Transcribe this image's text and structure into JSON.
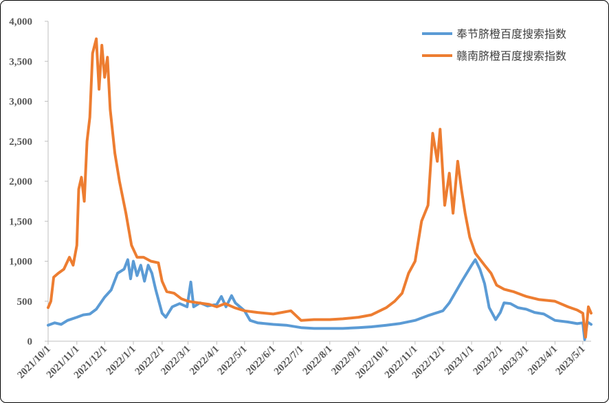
{
  "chart_data": {
    "type": "line",
    "title": "",
    "xlabel": "",
    "ylabel": "",
    "ylim": [
      0,
      4000
    ],
    "yticks": [
      0,
      500,
      1000,
      1500,
      2000,
      2500,
      3000,
      3500,
      4000
    ],
    "ytick_labels": [
      "0",
      "500",
      "1,000",
      "1,500",
      "2,000",
      "2,500",
      "3,000",
      "3,500",
      "4,000"
    ],
    "x_range": [
      "2021-10-01",
      "2023-05-10"
    ],
    "xticks": [
      "2021-10-01",
      "2021-11-01",
      "2021-12-01",
      "2022-01-01",
      "2022-02-01",
      "2022-03-01",
      "2022-04-01",
      "2022-05-01",
      "2022-06-01",
      "2022-07-01",
      "2022-08-01",
      "2022-09-01",
      "2022-10-01",
      "2022-11-01",
      "2022-12-01",
      "2023-01-01",
      "2023-02-01",
      "2023-03-01",
      "2023-04-01",
      "2023-05-01"
    ],
    "xtick_labels": [
      "2021/10/1",
      "2021/11/1",
      "2021/12/1",
      "2022/1/1",
      "2022/2/1",
      "2022/3/1",
      "2022/4/1",
      "2022/5/1",
      "2022/6/1",
      "2022/7/1",
      "2022/8/1",
      "2022/9/1",
      "2022/10/1",
      "2022/11/1",
      "2022/12/1",
      "2023/1/1",
      "2023/2/1",
      "2023/3/1",
      "2023/4/1",
      "2023/5/1"
    ],
    "grid": false,
    "legend_position": "top-right",
    "series": [
      {
        "name": "奉节脐橙百度搜索指数",
        "color": "#5B9BD5",
        "points": [
          [
            "2021-10-01",
            200
          ],
          [
            "2021-10-08",
            230
          ],
          [
            "2021-10-15",
            210
          ],
          [
            "2021-10-22",
            260
          ],
          [
            "2021-11-01",
            300
          ],
          [
            "2021-11-08",
            330
          ],
          [
            "2021-11-15",
            340
          ],
          [
            "2021-11-22",
            400
          ],
          [
            "2021-12-01",
            550
          ],
          [
            "2021-12-08",
            640
          ],
          [
            "2021-12-15",
            850
          ],
          [
            "2021-12-22",
            900
          ],
          [
            "2021-12-26",
            1020
          ],
          [
            "2021-12-29",
            780
          ],
          [
            "2022-01-01",
            1000
          ],
          [
            "2022-01-05",
            820
          ],
          [
            "2022-01-09",
            950
          ],
          [
            "2022-01-13",
            750
          ],
          [
            "2022-01-17",
            950
          ],
          [
            "2022-01-21",
            850
          ],
          [
            "2022-01-25",
            650
          ],
          [
            "2022-02-01",
            350
          ],
          [
            "2022-02-05",
            300
          ],
          [
            "2022-02-12",
            430
          ],
          [
            "2022-02-20",
            470
          ],
          [
            "2022-02-28",
            430
          ],
          [
            "2022-03-04",
            740
          ],
          [
            "2022-03-07",
            430
          ],
          [
            "2022-03-14",
            480
          ],
          [
            "2022-03-22",
            440
          ],
          [
            "2022-04-01",
            460
          ],
          [
            "2022-04-06",
            560
          ],
          [
            "2022-04-11",
            430
          ],
          [
            "2022-04-17",
            570
          ],
          [
            "2022-04-21",
            480
          ],
          [
            "2022-05-01",
            380
          ],
          [
            "2022-05-07",
            260
          ],
          [
            "2022-05-15",
            230
          ],
          [
            "2022-06-01",
            210
          ],
          [
            "2022-06-15",
            200
          ],
          [
            "2022-07-01",
            170
          ],
          [
            "2022-07-15",
            160
          ],
          [
            "2022-08-01",
            160
          ],
          [
            "2022-08-15",
            160
          ],
          [
            "2022-09-01",
            170
          ],
          [
            "2022-09-15",
            180
          ],
          [
            "2022-10-01",
            200
          ],
          [
            "2022-10-15",
            220
          ],
          [
            "2022-11-01",
            260
          ],
          [
            "2022-11-15",
            320
          ],
          [
            "2022-12-01",
            380
          ],
          [
            "2022-12-08",
            480
          ],
          [
            "2022-12-15",
            620
          ],
          [
            "2022-12-22",
            760
          ],
          [
            "2023-01-01",
            950
          ],
          [
            "2023-01-05",
            1020
          ],
          [
            "2023-01-10",
            900
          ],
          [
            "2023-01-15",
            720
          ],
          [
            "2023-01-20",
            420
          ],
          [
            "2023-01-27",
            270
          ],
          [
            "2023-02-01",
            360
          ],
          [
            "2023-02-05",
            480
          ],
          [
            "2023-02-12",
            470
          ],
          [
            "2023-02-20",
            420
          ],
          [
            "2023-03-01",
            400
          ],
          [
            "2023-03-10",
            360
          ],
          [
            "2023-03-20",
            340
          ],
          [
            "2023-04-01",
            260
          ],
          [
            "2023-04-15",
            240
          ],
          [
            "2023-04-25",
            220
          ],
          [
            "2023-05-01",
            230
          ],
          [
            "2023-05-03",
            20
          ],
          [
            "2023-05-06",
            240
          ],
          [
            "2023-05-10",
            210
          ]
        ]
      },
      {
        "name": "赣南脐橙百度搜索指数",
        "color": "#ED7D31",
        "points": [
          [
            "2021-10-01",
            420
          ],
          [
            "2021-10-04",
            500
          ],
          [
            "2021-10-07",
            800
          ],
          [
            "2021-10-12",
            850
          ],
          [
            "2021-10-18",
            900
          ],
          [
            "2021-10-24",
            1050
          ],
          [
            "2021-10-28",
            950
          ],
          [
            "2021-11-01",
            1200
          ],
          [
            "2021-11-03",
            1900
          ],
          [
            "2021-11-06",
            2050
          ],
          [
            "2021-11-09",
            1750
          ],
          [
            "2021-11-12",
            2500
          ],
          [
            "2021-11-15",
            2800
          ],
          [
            "2021-11-18",
            3600
          ],
          [
            "2021-11-22",
            3780
          ],
          [
            "2021-11-25",
            3150
          ],
          [
            "2021-11-28",
            3700
          ],
          [
            "2021-12-01",
            3300
          ],
          [
            "2021-12-04",
            3550
          ],
          [
            "2021-12-07",
            2900
          ],
          [
            "2021-12-12",
            2350
          ],
          [
            "2021-12-17",
            2000
          ],
          [
            "2021-12-24",
            1600
          ],
          [
            "2021-12-30",
            1200
          ],
          [
            "2022-01-05",
            1050
          ],
          [
            "2022-01-12",
            1050
          ],
          [
            "2022-01-20",
            1000
          ],
          [
            "2022-01-28",
            980
          ],
          [
            "2022-02-01",
            750
          ],
          [
            "2022-02-06",
            620
          ],
          [
            "2022-02-14",
            600
          ],
          [
            "2022-02-22",
            530
          ],
          [
            "2022-03-01",
            500
          ],
          [
            "2022-03-12",
            480
          ],
          [
            "2022-03-24",
            460
          ],
          [
            "2022-04-01",
            430
          ],
          [
            "2022-04-10",
            470
          ],
          [
            "2022-04-20",
            420
          ],
          [
            "2022-05-01",
            380
          ],
          [
            "2022-05-15",
            360
          ],
          [
            "2022-06-01",
            340
          ],
          [
            "2022-06-20",
            380
          ],
          [
            "2022-07-01",
            260
          ],
          [
            "2022-07-15",
            270
          ],
          [
            "2022-08-01",
            270
          ],
          [
            "2022-08-15",
            280
          ],
          [
            "2022-09-01",
            300
          ],
          [
            "2022-09-15",
            330
          ],
          [
            "2022-10-01",
            420
          ],
          [
            "2022-10-10",
            500
          ],
          [
            "2022-10-18",
            600
          ],
          [
            "2022-10-25",
            850
          ],
          [
            "2022-11-01",
            1000
          ],
          [
            "2022-11-08",
            1500
          ],
          [
            "2022-11-15",
            1700
          ],
          [
            "2022-11-20",
            2600
          ],
          [
            "2022-11-25",
            2250
          ],
          [
            "2022-11-28",
            2650
          ],
          [
            "2022-12-03",
            1700
          ],
          [
            "2022-12-08",
            2100
          ],
          [
            "2022-12-12",
            1600
          ],
          [
            "2022-12-17",
            2250
          ],
          [
            "2022-12-21",
            1900
          ],
          [
            "2022-12-25",
            1600
          ],
          [
            "2022-12-30",
            1300
          ],
          [
            "2023-01-05",
            1100
          ],
          [
            "2023-01-15",
            950
          ],
          [
            "2023-01-22",
            850
          ],
          [
            "2023-01-28",
            700
          ],
          [
            "2023-02-05",
            650
          ],
          [
            "2023-02-15",
            620
          ],
          [
            "2023-03-01",
            560
          ],
          [
            "2023-03-15",
            520
          ],
          [
            "2023-04-01",
            500
          ],
          [
            "2023-04-15",
            430
          ],
          [
            "2023-04-25",
            390
          ],
          [
            "2023-05-01",
            350
          ],
          [
            "2023-05-04",
            50
          ],
          [
            "2023-05-07",
            430
          ],
          [
            "2023-05-10",
            350
          ]
        ]
      }
    ]
  }
}
